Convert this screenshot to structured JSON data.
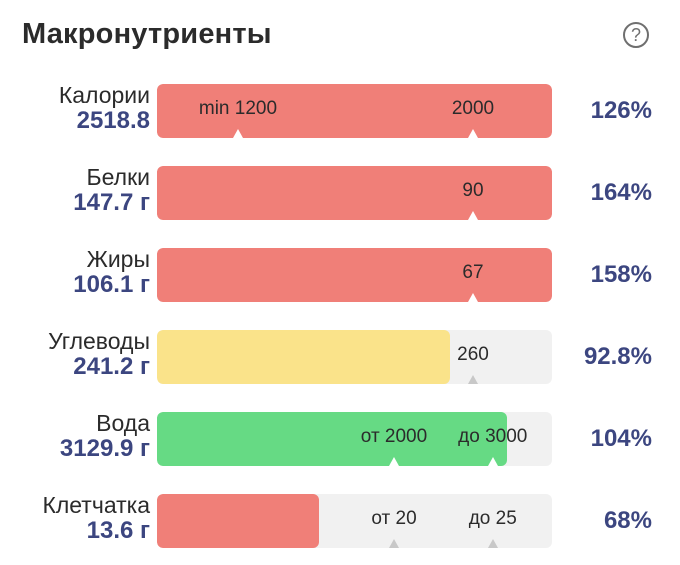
{
  "header": {
    "title": "Макронутриенты",
    "help_icon": "question-circle-icon",
    "help_glyph": "?"
  },
  "colors": {
    "over": "#f07f78",
    "near": "#fae38a",
    "ok": "#66da84",
    "track": "#f1f1f1"
  },
  "rows": [
    {
      "id": "calories",
      "name": "Калории",
      "value": "2518.8",
      "percent": "126%",
      "fill_fraction": 1.0,
      "status": "over",
      "markers": [
        {
          "label": "min 1200",
          "fraction": 0.205
        },
        {
          "label": "2000",
          "fraction": 0.8
        }
      ]
    },
    {
      "id": "protein",
      "name": "Белки",
      "value": "147.7 г",
      "percent": "164%",
      "fill_fraction": 1.0,
      "status": "over",
      "markers": [
        {
          "label": "90",
          "fraction": 0.8
        }
      ]
    },
    {
      "id": "fat",
      "name": "Жиры",
      "value": "106.1 г",
      "percent": "158%",
      "fill_fraction": 1.0,
      "status": "over",
      "markers": [
        {
          "label": "67",
          "fraction": 0.8
        }
      ]
    },
    {
      "id": "carbs",
      "name": "Углеводы",
      "value": "241.2 г",
      "percent": "92.8%",
      "fill_fraction": 0.742,
      "status": "near",
      "markers": [
        {
          "label": "260",
          "fraction": 0.8
        }
      ]
    },
    {
      "id": "water",
      "name": "Вода",
      "value": "3129.9 г",
      "percent": "104%",
      "fill_fraction": 0.885,
      "status": "ok",
      "markers": [
        {
          "label": "от 2000",
          "fraction": 0.6
        },
        {
          "label": "до 3000",
          "fraction": 0.85
        }
      ]
    },
    {
      "id": "fiber",
      "name": "Клетчатка",
      "value": "13.6 г",
      "percent": "68%",
      "fill_fraction": 0.41,
      "status": "over",
      "markers": [
        {
          "label": "от 20",
          "fraction": 0.6
        },
        {
          "label": "до 25",
          "fraction": 0.85
        }
      ]
    }
  ]
}
